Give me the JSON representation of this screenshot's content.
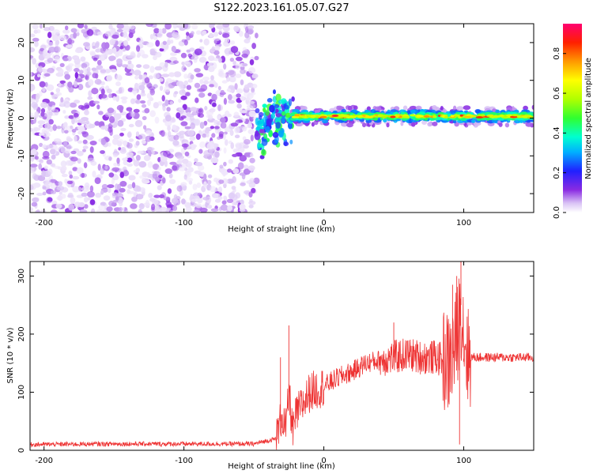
{
  "title": "S122.2023.161.05.07.G27",
  "chart_data": [
    {
      "type": "heatmap",
      "title": "",
      "xlabel": "Height of straight line (km)",
      "ylabel": "Frequency (Hz)",
      "xlim": [
        -210,
        150
      ],
      "ylim": [
        -25,
        25
      ],
      "xticks": [
        -200,
        -100,
        0,
        100
      ],
      "yticks": [
        -20,
        -10,
        0,
        10,
        20
      ],
      "colorbar": {
        "label": "Normalized spectral amplitude",
        "range": [
          0,
          0.95
        ],
        "ticks": [
          0.0,
          0.2,
          0.4,
          0.6,
          0.8
        ],
        "colormap": [
          "#ffffff",
          "#d9c2f5",
          "#8a2be2",
          "#2020ff",
          "#00b0ff",
          "#00ffd0",
          "#30ff30",
          "#b0ff00",
          "#ffff00",
          "#ff9900",
          "#ff2000",
          "#ff0070"
        ]
      },
      "regions": [
        {
          "name": "noise",
          "x_range": [
            -210,
            -48
          ],
          "freq_range": [
            -25,
            25
          ],
          "amplitude_range": [
            0.02,
            0.12
          ]
        },
        {
          "name": "transition",
          "x_range": [
            -48,
            -22
          ],
          "freq_range": [
            -8,
            8
          ],
          "amplitude_range": [
            0.1,
            0.5
          ]
        },
        {
          "name": "carrier",
          "x_range": [
            -22,
            150
          ],
          "center_freq": 0.5,
          "halfwidth_hz": 2,
          "amplitude_range": [
            0.3,
            0.9
          ]
        }
      ]
    },
    {
      "type": "line",
      "title": "",
      "xlabel": "Height of straight line (km)",
      "ylabel": "SNR (10 * v/v)",
      "xlim": [
        -210,
        150
      ],
      "ylim": [
        0,
        325
      ],
      "xticks": [
        -200,
        -100,
        0,
        100
      ],
      "yticks": [
        0,
        100,
        200,
        300
      ],
      "color": "#ee3333",
      "x": [
        -210,
        -150,
        -100,
        -50,
        -34,
        -30,
        -27,
        -25,
        -22,
        -20,
        -15,
        -10,
        0,
        10,
        20,
        30,
        40,
        50,
        60,
        70,
        80,
        90,
        95,
        98,
        100,
        103,
        110,
        120,
        130,
        140,
        150
      ],
      "y": [
        10,
        11,
        11,
        11,
        20,
        60,
        35,
        100,
        30,
        60,
        80,
        100,
        110,
        125,
        135,
        150,
        155,
        160,
        165,
        160,
        160,
        150,
        190,
        250,
        200,
        160,
        160,
        160,
        160,
        160,
        160
      ],
      "spikes": [
        {
          "x": -31,
          "y": 160
        },
        {
          "x": -25,
          "y": 215
        },
        {
          "x": 50,
          "y": 220
        },
        {
          "x": 92,
          "y": 285
        },
        {
          "x": 95,
          "y": 300
        },
        {
          "x": 98,
          "y": 325
        },
        {
          "x": 97,
          "y": 10
        }
      ]
    }
  ]
}
